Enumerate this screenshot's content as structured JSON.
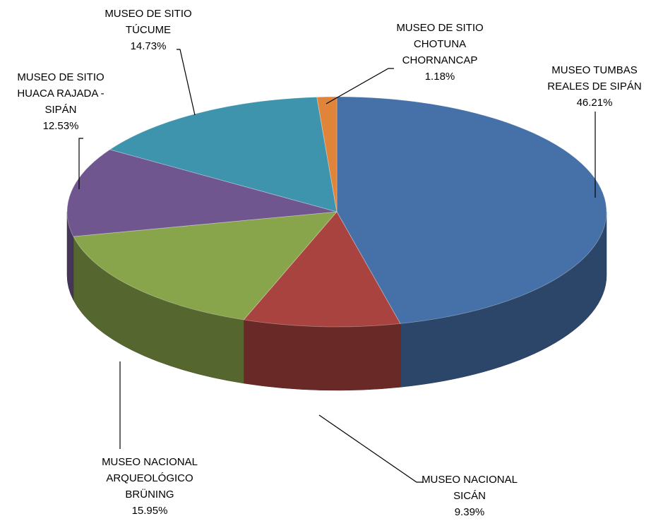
{
  "chart_data": {
    "type": "pie3d",
    "categories": [
      "MUSEO TUMBAS REALES DE SIPÁN",
      "MUSEO NACIONAL SICÁN",
      "MUSEO NACIONAL ARQUEOLÓGICO BRÜNING",
      "MUSEO DE SITIO HUACA RAJADA - SIPÁN",
      "MUSEO DE SITIO TÚCUME",
      "MUSEO DE SITIO CHOTUNA CHORNANCAP"
    ],
    "values": [
      46.21,
      9.39,
      15.95,
      12.53,
      14.73,
      1.18
    ],
    "value_labels": [
      "46.21%",
      "9.39%",
      "15.95%",
      "12.53%",
      "14.73%",
      "1.18%"
    ],
    "colors": [
      "#4571a8",
      "#a9433f",
      "#89a54c",
      "#6f568f",
      "#3f94ad",
      "#e0843a"
    ]
  }
}
